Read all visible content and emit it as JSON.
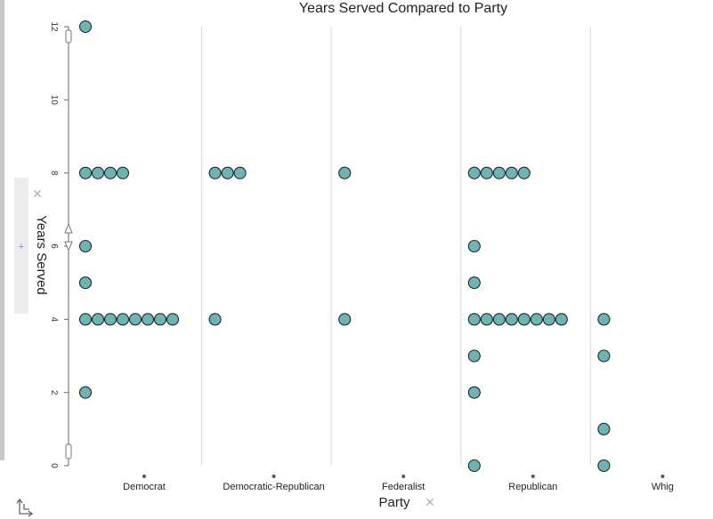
{
  "chart_data": {
    "type": "scatter",
    "title": "Years Served Compared to Party",
    "xlabel": "Party",
    "ylabel": "Years Served",
    "categories": [
      "Democrat",
      "Democratic-Republican",
      "Federalist",
      "Republican",
      "Whig"
    ],
    "y_ticks": [
      "0",
      "2",
      "4",
      "6",
      "8",
      "10",
      "12"
    ],
    "ylim": [
      0,
      12
    ],
    "dot_color": "#6fb3b4",
    "groups": [
      {
        "category": "Democrat",
        "values": [
          {
            "y": 12,
            "count": 1
          },
          {
            "y": 8,
            "count": 4
          },
          {
            "y": 6,
            "count": 1
          },
          {
            "y": 5,
            "count": 1
          },
          {
            "y": 4,
            "count": 8
          },
          {
            "y": 2,
            "count": 1
          }
        ]
      },
      {
        "category": "Democratic-Republican",
        "values": [
          {
            "y": 8,
            "count": 3
          },
          {
            "y": 4,
            "count": 1
          }
        ]
      },
      {
        "category": "Federalist",
        "values": [
          {
            "y": 8,
            "count": 1
          },
          {
            "y": 4,
            "count": 1
          }
        ]
      },
      {
        "category": "Republican",
        "values": [
          {
            "y": 8,
            "count": 5
          },
          {
            "y": 6,
            "count": 1
          },
          {
            "y": 5,
            "count": 1
          },
          {
            "y": 4,
            "count": 8
          },
          {
            "y": 3,
            "count": 1
          },
          {
            "y": 2,
            "count": 1
          },
          {
            "y": 0,
            "count": 1
          }
        ]
      },
      {
        "category": "Whig",
        "values": [
          {
            "y": 4,
            "count": 1
          },
          {
            "y": 3,
            "count": 1
          },
          {
            "y": 1,
            "count": 1
          },
          {
            "y": 0,
            "count": 1
          }
        ]
      }
    ]
  },
  "ui": {
    "remove_icon": "close-icon",
    "add_icon": "plus-icon",
    "close_glyph": "✕",
    "plus_glyph": "+"
  }
}
